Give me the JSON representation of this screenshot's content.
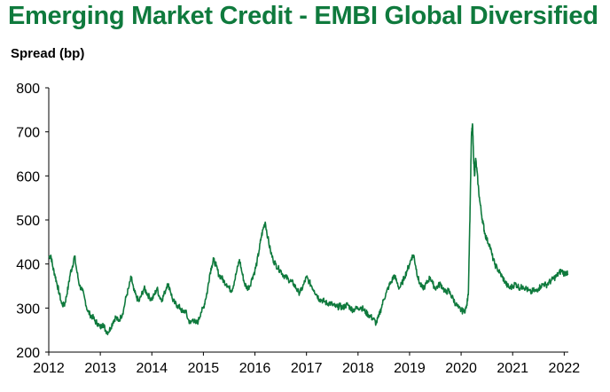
{
  "title": "Emerging Market Credit - EMBI Global Diversified",
  "colors": {
    "title": "#0f7a3d",
    "line": "#0f7a3d",
    "axis": "#000000"
  },
  "chart_data": {
    "type": "line",
    "title": "Emerging Market Credit - EMBI Global Diversified",
    "ylabel": "Spread (bp)",
    "xlabel": "",
    "xlim": [
      2012.0,
      2022.08
    ],
    "ylim": [
      200,
      800
    ],
    "y_ticks": [
      "200",
      "300",
      "400",
      "500",
      "600",
      "700",
      "800"
    ],
    "x_ticks": [
      "2012",
      "2013",
      "2014",
      "2015",
      "2016",
      "2017",
      "2018",
      "2019",
      "2020",
      "2021",
      "2022"
    ],
    "grid": false,
    "legend": "none",
    "series": [
      {
        "x": [
          2012.0,
          2012.04,
          2012.08,
          2012.12,
          2012.16,
          2012.2,
          2012.25,
          2012.3,
          2012.34,
          2012.38,
          2012.42,
          2012.46,
          2012.5,
          2012.55,
          2012.6,
          2012.65,
          2012.7,
          2012.75,
          2012.8,
          2012.85,
          2012.9,
          2012.95,
          2013.0,
          2013.05,
          2013.1,
          2013.15,
          2013.2,
          2013.25,
          2013.3,
          2013.35,
          2013.4,
          2013.45,
          2013.5,
          2013.55,
          2013.6,
          2013.65,
          2013.7,
          2013.75,
          2013.8,
          2013.85,
          2013.9,
          2013.95,
          2014.0,
          2014.05,
          2014.1,
          2014.15,
          2014.2,
          2014.25,
          2014.3,
          2014.35,
          2014.4,
          2014.45,
          2014.5,
          2014.55,
          2014.6,
          2014.65,
          2014.7,
          2014.75,
          2014.8,
          2014.85,
          2014.9,
          2014.95,
          2015.0,
          2015.04,
          2015.08,
          2015.12,
          2015.16,
          2015.2,
          2015.25,
          2015.3,
          2015.35,
          2015.4,
          2015.45,
          2015.5,
          2015.55,
          2015.6,
          2015.65,
          2015.7,
          2015.75,
          2015.8,
          2015.85,
          2015.9,
          2015.95,
          2016.0,
          2016.04,
          2016.08,
          2016.12,
          2016.16,
          2016.2,
          2016.25,
          2016.3,
          2016.35,
          2016.4,
          2016.45,
          2016.5,
          2016.55,
          2016.6,
          2016.65,
          2016.7,
          2016.75,
          2016.8,
          2016.85,
          2016.9,
          2016.95,
          2017.0,
          2017.05,
          2017.1,
          2017.15,
          2017.2,
          2017.25,
          2017.3,
          2017.35,
          2017.4,
          2017.45,
          2017.5,
          2017.55,
          2017.6,
          2017.65,
          2017.7,
          2017.75,
          2017.8,
          2017.85,
          2017.9,
          2017.95,
          2018.0,
          2018.05,
          2018.1,
          2018.15,
          2018.2,
          2018.25,
          2018.3,
          2018.35,
          2018.4,
          2018.45,
          2018.5,
          2018.55,
          2018.6,
          2018.65,
          2018.7,
          2018.75,
          2018.8,
          2018.85,
          2018.9,
          2018.95,
          2019.0,
          2019.04,
          2019.08,
          2019.12,
          2019.16,
          2019.2,
          2019.25,
          2019.3,
          2019.35,
          2019.4,
          2019.45,
          2019.5,
          2019.55,
          2019.6,
          2019.65,
          2019.7,
          2019.75,
          2019.8,
          2019.85,
          2019.9,
          2019.95,
          2020.0,
          2020.05,
          2020.1,
          2020.14,
          2020.16,
          2020.18,
          2020.2,
          2020.22,
          2020.24,
          2020.26,
          2020.28,
          2020.3,
          2020.33,
          2020.36,
          2020.4,
          2020.43,
          2020.46,
          2020.5,
          2020.55,
          2020.6,
          2020.65,
          2020.7,
          2020.75,
          2020.8,
          2020.85,
          2020.9,
          2020.95,
          2021.0,
          2021.05,
          2021.1,
          2021.15,
          2021.2,
          2021.25,
          2021.3,
          2021.35,
          2021.4,
          2021.45,
          2021.5,
          2021.55,
          2021.6,
          2021.65,
          2021.7,
          2021.75,
          2021.8,
          2021.85,
          2021.9,
          2021.95,
          2022.0,
          2022.04,
          2022.07
        ],
        "values": [
          415,
          420,
          392,
          375,
          355,
          335,
          310,
          305,
          325,
          350,
          380,
          395,
          418,
          380,
          350,
          340,
          320,
          295,
          285,
          280,
          270,
          265,
          255,
          265,
          250,
          245,
          255,
          270,
          280,
          270,
          280,
          295,
          325,
          345,
          370,
          340,
          325,
          315,
          330,
          345,
          335,
          325,
          320,
          330,
          345,
          325,
          320,
          335,
          355,
          345,
          320,
          310,
          305,
          300,
          290,
          295,
          275,
          265,
          275,
          265,
          270,
          290,
          300,
          320,
          340,
          375,
          395,
          410,
          395,
          375,
          370,
          360,
          355,
          345,
          340,
          360,
          385,
          410,
          380,
          355,
          345,
          350,
          370,
          385,
          405,
          430,
          460,
          480,
          495,
          460,
          430,
          410,
          400,
          390,
          385,
          375,
          370,
          365,
          360,
          355,
          345,
          335,
          340,
          355,
          370,
          360,
          350,
          340,
          330,
          320,
          318,
          315,
          310,
          312,
          308,
          304,
          302,
          305,
          300,
          305,
          308,
          300,
          296,
          298,
          300,
          302,
          298,
          290,
          285,
          280,
          275,
          265,
          280,
          300,
          320,
          335,
          350,
          360,
          375,
          360,
          345,
          355,
          370,
          385,
          400,
          415,
          420,
          395,
          370,
          355,
          345,
          350,
          360,
          370,
          355,
          345,
          350,
          355,
          345,
          335,
          340,
          330,
          320,
          308,
          300,
          295,
          292,
          300,
          330,
          450,
          560,
          690,
          718,
          650,
          600,
          640,
          620,
          580,
          545,
          510,
          490,
          470,
          455,
          445,
          420,
          400,
          390,
          380,
          370,
          360,
          350,
          345,
          350,
          355,
          350,
          345,
          350,
          345,
          340,
          335,
          340,
          338,
          345,
          350,
          355,
          352,
          358,
          362,
          368,
          372,
          380,
          385,
          378,
          382,
          375
        ]
      }
    ]
  }
}
